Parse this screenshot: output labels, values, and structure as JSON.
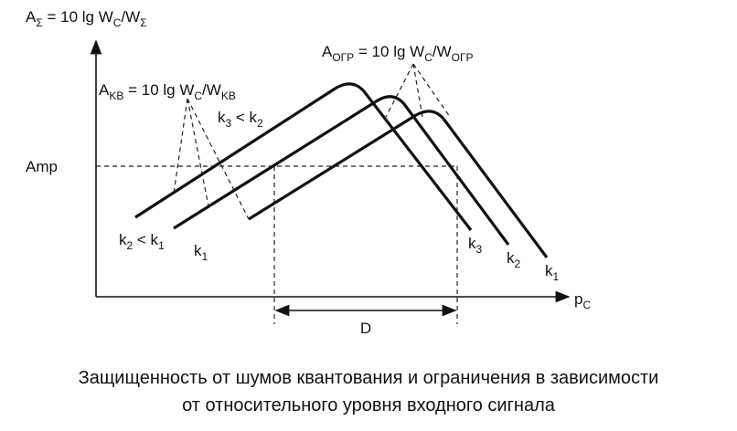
{
  "axes": {
    "y_label": [
      "A",
      "Σ",
      " = 10 lg W",
      "C",
      "/W",
      "Σ"
    ],
    "x_label": [
      "p",
      "C"
    ]
  },
  "level_label": "Amp",
  "span_label": "D",
  "annotations": {
    "quantization": [
      "A",
      "KB",
      " = 10 lg W",
      "C",
      "/W",
      "KB"
    ],
    "overload": [
      "A",
      "ОГР",
      " = 10 lg W",
      "C",
      "/W",
      "ОГР"
    ],
    "k3_vs_k2": [
      "k",
      "3",
      " < k",
      "2"
    ],
    "k2_vs_k1": [
      "k",
      "2",
      " < k",
      "1"
    ]
  },
  "curves": [
    {
      "left_label": [
        "k",
        "1"
      ],
      "right_label": [
        "k",
        "1"
      ]
    },
    {
      "right_label": [
        "k",
        "2"
      ]
    },
    {
      "right_label": [
        "k",
        "3"
      ]
    }
  ],
  "caption": [
    "Защищенность от шумов квантования и ограничения в зависимости",
    "от относительного уровня входного сигнала"
  ]
}
